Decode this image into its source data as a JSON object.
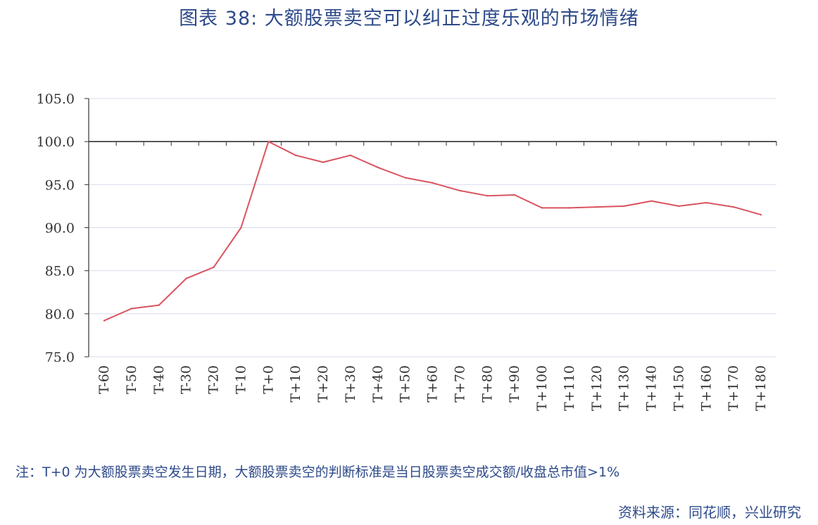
{
  "title": "图表 38: 大额股票卖空可以纠正过度乐观的市场情绪",
  "note": "注：T+0 为大额股票卖空发生日期，大额股票卖空的判断标准是当日股票卖空成交额/收盘总市值>1%",
  "source": "资料来源：同花顺，兴业研究",
  "colors": {
    "line": "#d9545f",
    "grid": "#d8dcef",
    "axis": "#333333",
    "text": "#2e4a8a"
  },
  "chart_data": {
    "type": "line",
    "categories": [
      "T-60",
      "T-50",
      "T-40",
      "T-30",
      "T-20",
      "T-10",
      "T+0",
      "T+10",
      "T+20",
      "T+30",
      "T+40",
      "T+50",
      "T+60",
      "T+70",
      "T+80",
      "T+90",
      "T+100",
      "T+110",
      "T+120",
      "T+130",
      "T+140",
      "T+150",
      "T+160",
      "T+170",
      "T+180"
    ],
    "series": [
      {
        "values": [
          79.2,
          80.6,
          81.0,
          84.1,
          85.4,
          90.0,
          100.0,
          98.4,
          97.6,
          98.4,
          97.0,
          95.8,
          95.2,
          94.3,
          93.7,
          93.8,
          92.3,
          92.3,
          92.4,
          92.5,
          93.1,
          92.5,
          92.9,
          92.4,
          91.5
        ]
      }
    ],
    "ylim": [
      75.0,
      105.0
    ],
    "yticks": [
      "75.0",
      "80.0",
      "85.0",
      "90.0",
      "95.0",
      "100.0",
      "105.0"
    ],
    "baseline": 100.0,
    "grid": true,
    "legend": "none"
  }
}
